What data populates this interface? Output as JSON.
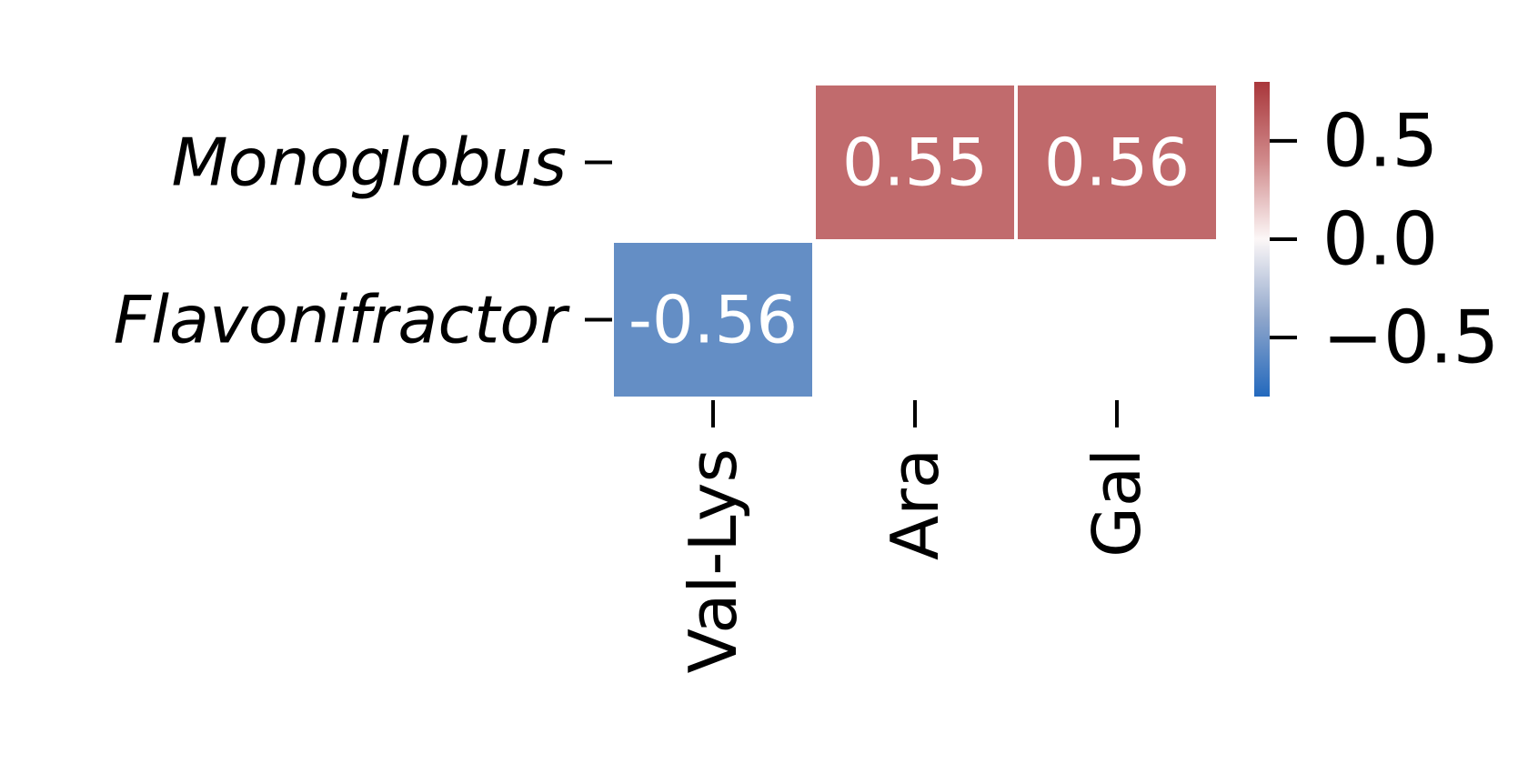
{
  "chart_data": {
    "type": "heatmap",
    "rows": [
      "Monoglobus",
      "Flavonifractor"
    ],
    "columns": [
      "Val-Lys",
      "Ara",
      "Gal"
    ],
    "values": [
      [
        null,
        0.55,
        0.56
      ],
      [
        -0.56,
        null,
        null
      ]
    ],
    "cell_labels": [
      [
        "",
        "0.55",
        "0.56"
      ],
      [
        "-0.56",
        "",
        ""
      ]
    ],
    "colormap": "vlag (blue-white-red)",
    "color_low": "#2369bd",
    "color_mid": "#fcf7f7",
    "color_high": "#a9373b",
    "vmin": -0.8,
    "vmax": 0.8,
    "colorbar_ticks": [
      0.5,
      0.0,
      -0.5
    ],
    "colorbar_tick_labels": [
      "0.5",
      "0.0",
      "−0.5"
    ],
    "title": "",
    "xlabel": "",
    "ylabel": ""
  }
}
